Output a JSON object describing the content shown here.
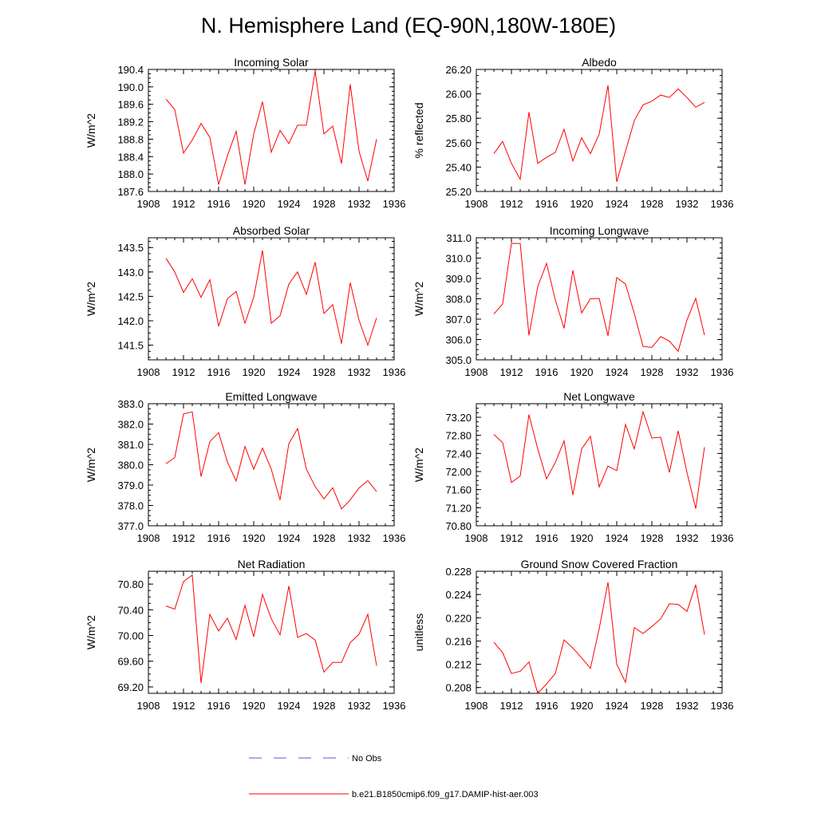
{
  "title": "N. Hemisphere Land (EQ-90N,180W-180E)",
  "colors": {
    "model_line": "#ff0000",
    "obs_line": "#4a5bd6",
    "axis": "#000000"
  },
  "legend": [
    {
      "label": "No Obs",
      "style": "dashed",
      "color": "#4a5bd6"
    },
    {
      "label": "b.e21.B1850cmip6.f09_g17.DAMIP-hist-aer.003",
      "style": "solid",
      "color": "#ff0000"
    }
  ],
  "chart_data": [
    {
      "type": "line",
      "title": "Incoming Solar",
      "ylabel": "W/m^2",
      "xlim": [
        1908,
        1936
      ],
      "xticks": [
        "1908",
        "1912",
        "1916",
        "1920",
        "1924",
        "1928",
        "1932",
        "1936"
      ],
      "ylim": [
        187.6,
        190.4
      ],
      "yticks": [
        "187.6",
        "188.0",
        "188.4",
        "188.8",
        "189.2",
        "189.6",
        "190.0",
        "190.4"
      ],
      "x": [
        1910,
        1911,
        1912,
        1913,
        1914,
        1915,
        1916,
        1917,
        1918,
        1919,
        1920,
        1921,
        1922,
        1923,
        1924,
        1925,
        1926,
        1927,
        1928,
        1929,
        1930,
        1931,
        1932,
        1933,
        1934
      ],
      "series": [
        {
          "values": [
            189.72,
            189.48,
            188.48,
            188.78,
            189.16,
            188.84,
            187.76,
            188.42,
            188.98,
            187.76,
            188.92,
            189.66,
            188.5,
            189.0,
            188.7,
            189.12,
            189.12,
            190.36,
            188.92,
            189.1,
            188.24,
            190.06,
            188.52,
            187.84,
            188.8
          ]
        }
      ]
    },
    {
      "type": "line",
      "title": "Albedo",
      "ylabel": "% reflected",
      "xlim": [
        1908,
        1936
      ],
      "xticks": [
        "1908",
        "1912",
        "1916",
        "1920",
        "1924",
        "1928",
        "1932",
        "1936"
      ],
      "ylim": [
        25.2,
        26.2
      ],
      "yticks": [
        "25.20",
        "25.40",
        "25.60",
        "25.80",
        "26.00",
        "26.20"
      ],
      "x": [
        1910,
        1911,
        1912,
        1913,
        1914,
        1915,
        1916,
        1917,
        1918,
        1919,
        1920,
        1921,
        1922,
        1923,
        1924,
        1925,
        1926,
        1927,
        1928,
        1929,
        1930,
        1931,
        1932,
        1933,
        1934
      ],
      "series": [
        {
          "values": [
            25.51,
            25.61,
            25.43,
            25.3,
            25.85,
            25.43,
            25.48,
            25.52,
            25.71,
            25.45,
            25.64,
            25.51,
            25.67,
            26.07,
            25.28,
            25.53,
            25.78,
            25.91,
            25.94,
            25.99,
            25.97,
            26.04,
            25.97,
            25.89,
            25.93
          ]
        }
      ]
    },
    {
      "type": "line",
      "title": "Absorbed Solar",
      "ylabel": "W/m^2",
      "xlim": [
        1908,
        1936
      ],
      "xticks": [
        "1908",
        "1912",
        "1916",
        "1920",
        "1924",
        "1928",
        "1932",
        "1936"
      ],
      "ylim": [
        141.2,
        143.7
      ],
      "yticks": [
        "141.5",
        "142.0",
        "142.5",
        "143.0",
        "143.5"
      ],
      "x": [
        1910,
        1911,
        1912,
        1913,
        1914,
        1915,
        1916,
        1917,
        1918,
        1919,
        1920,
        1921,
        1922,
        1923,
        1924,
        1925,
        1926,
        1927,
        1928,
        1929,
        1930,
        1931,
        1932,
        1933,
        1934
      ],
      "series": [
        {
          "values": [
            143.28,
            143.0,
            142.58,
            142.86,
            142.48,
            142.84,
            141.89,
            142.45,
            142.6,
            141.95,
            142.48,
            143.44,
            141.95,
            142.1,
            142.75,
            143.0,
            142.54,
            143.2,
            142.15,
            142.33,
            141.53,
            142.78,
            142.01,
            141.5,
            142.06
          ]
        }
      ]
    },
    {
      "type": "line",
      "title": "Incoming Longwave",
      "ylabel": "W/m^2",
      "xlim": [
        1908,
        1936
      ],
      "xticks": [
        "1908",
        "1912",
        "1916",
        "1920",
        "1924",
        "1928",
        "1932",
        "1936"
      ],
      "ylim": [
        305.0,
        311.0
      ],
      "yticks": [
        "305.0",
        "306.0",
        "307.0",
        "308.0",
        "309.0",
        "310.0",
        "311.0"
      ],
      "x": [
        1910,
        1911,
        1912,
        1913,
        1914,
        1915,
        1916,
        1917,
        1918,
        1919,
        1920,
        1921,
        1922,
        1923,
        1924,
        1925,
        1926,
        1927,
        1928,
        1929,
        1930,
        1931,
        1932,
        1933,
        1934
      ],
      "series": [
        {
          "values": [
            307.25,
            307.75,
            310.72,
            310.72,
            306.2,
            308.6,
            309.74,
            307.95,
            306.55,
            309.4,
            307.3,
            308.0,
            308.02,
            306.18,
            309.04,
            308.72,
            307.28,
            305.66,
            305.61,
            306.14,
            305.92,
            305.42,
            306.96,
            308.02,
            306.21
          ]
        }
      ]
    },
    {
      "type": "line",
      "title": "Emitted Longwave",
      "ylabel": "W/m^2",
      "xlim": [
        1908,
        1936
      ],
      "xticks": [
        "1908",
        "1912",
        "1916",
        "1920",
        "1924",
        "1928",
        "1932",
        "1936"
      ],
      "ylim": [
        377.0,
        383.0
      ],
      "yticks": [
        "377.0",
        "378.0",
        "379.0",
        "380.0",
        "381.0",
        "382.0",
        "383.0"
      ],
      "x": [
        1910,
        1911,
        1912,
        1913,
        1914,
        1915,
        1916,
        1917,
        1918,
        1919,
        1920,
        1921,
        1922,
        1923,
        1924,
        1925,
        1926,
        1927,
        1928,
        1929,
        1930,
        1931,
        1932,
        1933,
        1934
      ],
      "series": [
        {
          "values": [
            380.05,
            380.35,
            382.5,
            382.6,
            379.42,
            381.13,
            381.58,
            380.14,
            379.2,
            380.9,
            379.78,
            380.82,
            379.78,
            378.27,
            381.04,
            381.78,
            379.78,
            378.93,
            378.32,
            378.87,
            377.83,
            378.27,
            378.86,
            379.22,
            378.68
          ]
        }
      ]
    },
    {
      "type": "line",
      "title": "Net Longwave",
      "ylabel": "W/m^2",
      "xlim": [
        1908,
        1936
      ],
      "xticks": [
        "1908",
        "1912",
        "1916",
        "1920",
        "1924",
        "1928",
        "1932",
        "1936"
      ],
      "ylim": [
        70.8,
        73.5
      ],
      "yticks": [
        "70.80",
        "71.20",
        "71.60",
        "72.00",
        "72.40",
        "72.80",
        "73.20"
      ],
      "x": [
        1910,
        1911,
        1912,
        1913,
        1914,
        1915,
        1916,
        1917,
        1918,
        1919,
        1920,
        1921,
        1922,
        1923,
        1924,
        1925,
        1926,
        1927,
        1928,
        1929,
        1930,
        1931,
        1932,
        1933,
        1934
      ],
      "series": [
        {
          "values": [
            72.82,
            72.64,
            71.76,
            71.9,
            73.26,
            72.5,
            71.84,
            72.2,
            72.68,
            71.48,
            72.5,
            72.78,
            71.66,
            72.12,
            72.02,
            73.04,
            72.5,
            73.32,
            72.74,
            72.76,
            71.98,
            72.9,
            71.98,
            71.18,
            72.54
          ]
        }
      ]
    },
    {
      "type": "line",
      "title": "Net Radiation",
      "ylabel": "W/m^2",
      "xlim": [
        1908,
        1936
      ],
      "xticks": [
        "1908",
        "1912",
        "1916",
        "1920",
        "1924",
        "1928",
        "1932",
        "1936"
      ],
      "ylim": [
        69.1,
        71.0
      ],
      "yticks": [
        "69.20",
        "69.60",
        "70.00",
        "70.40",
        "70.80"
      ],
      "x": [
        1910,
        1911,
        1912,
        1913,
        1914,
        1915,
        1916,
        1917,
        1918,
        1919,
        1920,
        1921,
        1922,
        1923,
        1924,
        1925,
        1926,
        1927,
        1928,
        1929,
        1930,
        1931,
        1932,
        1933,
        1934
      ],
      "series": [
        {
          "values": [
            70.46,
            70.41,
            70.84,
            70.94,
            69.26,
            70.33,
            70.07,
            70.27,
            69.94,
            70.47,
            69.98,
            70.64,
            70.26,
            70.01,
            70.77,
            69.97,
            70.03,
            69.93,
            69.43,
            69.58,
            69.58,
            69.89,
            70.02,
            70.33,
            69.53
          ]
        }
      ]
    },
    {
      "type": "line",
      "title": "Ground Snow Covered Fraction",
      "ylabel": "unitless",
      "xlim": [
        1908,
        1936
      ],
      "xticks": [
        "1908",
        "1912",
        "1916",
        "1920",
        "1924",
        "1928",
        "1932",
        "1936"
      ],
      "ylim": [
        0.207,
        0.228
      ],
      "yticks": [
        "0.208",
        "0.212",
        "0.216",
        "0.220",
        "0.224",
        "0.228"
      ],
      "x": [
        1910,
        1911,
        1912,
        1913,
        1914,
        1915,
        1916,
        1917,
        1918,
        1919,
        1920,
        1921,
        1922,
        1923,
        1924,
        1925,
        1926,
        1927,
        1928,
        1929,
        1930,
        1931,
        1932,
        1933,
        1934
      ],
      "series": [
        {
          "values": [
            0.2158,
            0.214,
            0.2104,
            0.2108,
            0.2124,
            0.207,
            0.2086,
            0.2104,
            0.2162,
            0.2148,
            0.2131,
            0.2113,
            0.2181,
            0.2261,
            0.212,
            0.2089,
            0.2183,
            0.2173,
            0.2185,
            0.2198,
            0.2224,
            0.2223,
            0.2211,
            0.2257,
            0.2171
          ]
        }
      ]
    }
  ]
}
